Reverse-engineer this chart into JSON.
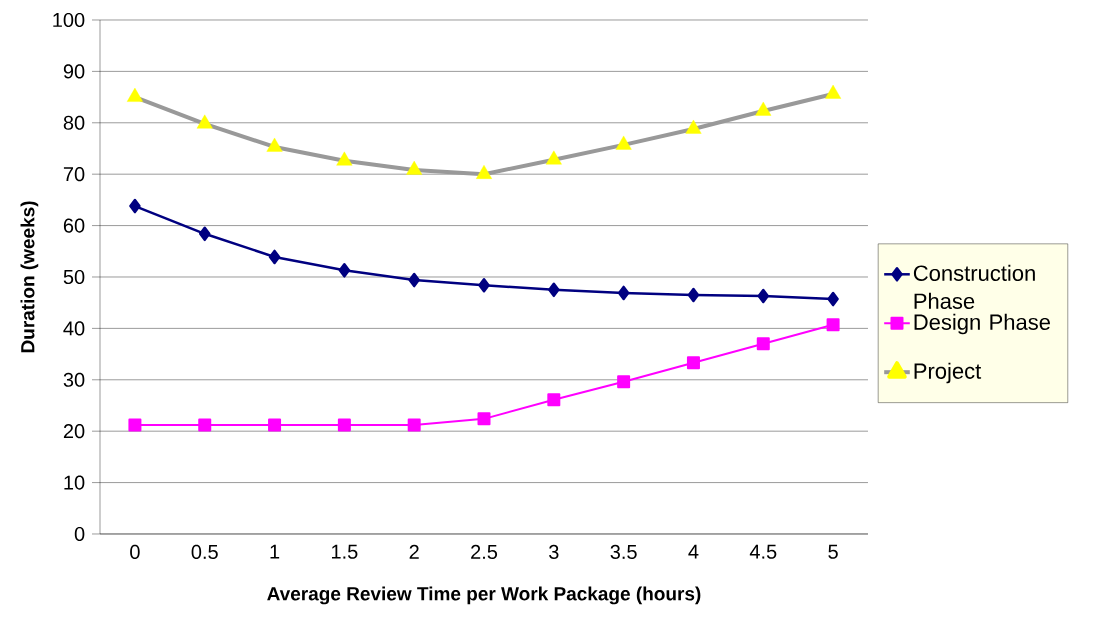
{
  "chart_data": {
    "type": "line",
    "xlabel": "Average Review Time per Work Package (hours)",
    "ylabel": "Duration (weeks)",
    "categories": [
      "0",
      "0.5",
      "1",
      "1.5",
      "2",
      "2.5",
      "3",
      "3.5",
      "4",
      "4.5",
      "5"
    ],
    "ylim": [
      0,
      100
    ],
    "yticks": [
      0,
      10,
      20,
      30,
      40,
      50,
      60,
      70,
      80,
      90,
      100
    ],
    "grid": "y",
    "legend": "right",
    "line_style": "solid",
    "series": [
      {
        "name": "Construction Phase",
        "color": "#000080",
        "marker": "diamond",
        "values": [
          63.8,
          58.4,
          53.9,
          51.3,
          49.4,
          48.4,
          47.5,
          46.9,
          46.5,
          46.3,
          45.7
        ]
      },
      {
        "name": "Design Phase",
        "color": "#ff00ff",
        "marker": "square",
        "values": [
          21.2,
          21.2,
          21.2,
          21.2,
          21.2,
          22.4,
          26.1,
          29.6,
          33.3,
          37,
          40.7
        ]
      },
      {
        "name": "Project",
        "color": "#999999",
        "marker": "triangle",
        "colors": [
          "#ffff00",
          "#ffff00",
          "#ffff00",
          "#ffff00",
          "#ffff00",
          "#ffff00",
          "#ffff00",
          "#ffff00",
          "#ffff00",
          "#ffff00",
          "#ffff00"
        ],
        "values": [
          85,
          79.8,
          75.3,
          72.6,
          70.8,
          70,
          72.8,
          75.7,
          78.8,
          82.3,
          85.6
        ]
      }
    ]
  }
}
